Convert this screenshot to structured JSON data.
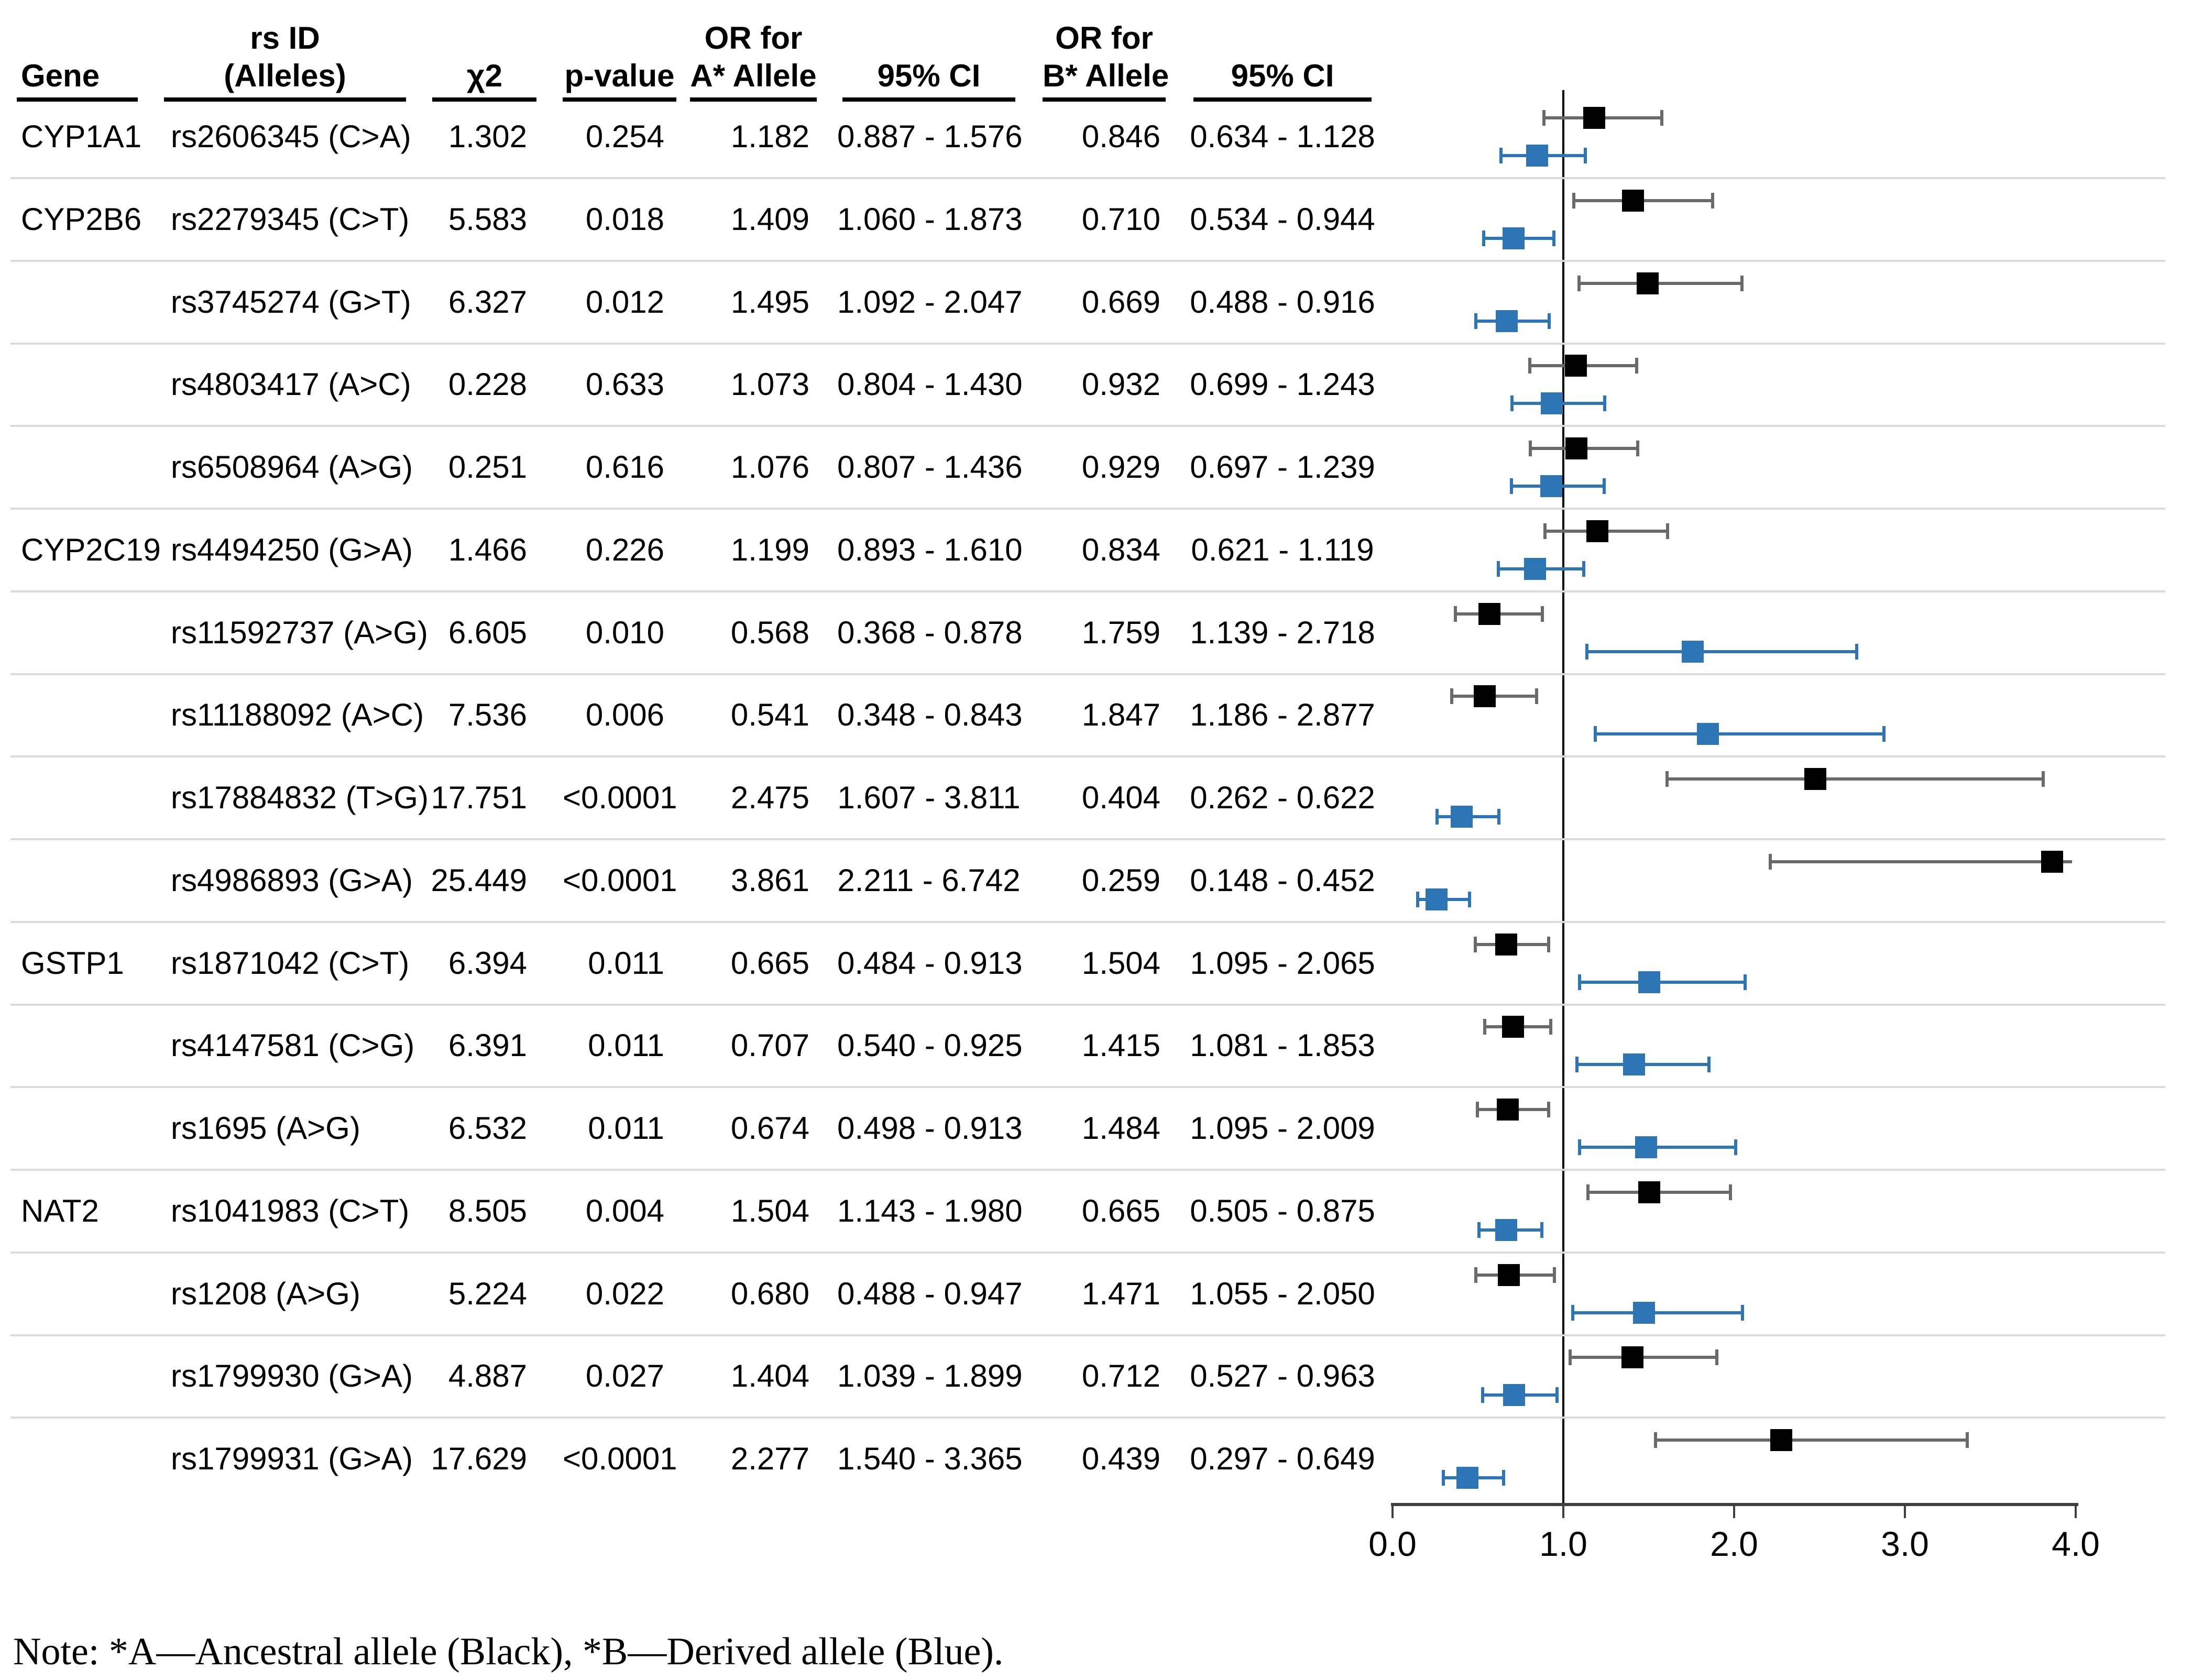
{
  "header": {
    "gene": "Gene",
    "rsid_top": "rs ID",
    "rsid_bottom": "(Alleles)",
    "chi2": "χ2",
    "pvalue": "p-value",
    "or_a_top": "OR for",
    "or_a_bottom": "A* Allele",
    "ci_a": "95% CI",
    "or_b_top": "OR for",
    "or_b_bottom": "B* Allele",
    "ci_b": "95% CI"
  },
  "rows": [
    {
      "gene": "CYP1A1",
      "rsid": "rs2606345 (C>A)",
      "chi2": "1.302",
      "p": "0.254",
      "or_a": "1.182",
      "ci_a": "0.887 - 1.576",
      "or_b": "0.846",
      "ci_b": "0.634 - 1.128"
    },
    {
      "gene": "CYP2B6",
      "rsid": "rs2279345 (C>T)",
      "chi2": "5.583",
      "p": "0.018",
      "or_a": "1.409",
      "ci_a": "1.060 - 1.873",
      "or_b": "0.710",
      "ci_b": "0.534 - 0.944"
    },
    {
      "gene": "",
      "rsid": "rs3745274 (G>T)",
      "chi2": "6.327",
      "p": "0.012",
      "or_a": "1.495",
      "ci_a": "1.092 - 2.047",
      "or_b": "0.669",
      "ci_b": "0.488 - 0.916"
    },
    {
      "gene": "",
      "rsid": "rs4803417 (A>C)",
      "chi2": "0.228",
      "p": "0.633",
      "or_a": "1.073",
      "ci_a": "0.804 - 1.430",
      "or_b": "0.932",
      "ci_b": "0.699 - 1.243"
    },
    {
      "gene": "",
      "rsid": "rs6508964 (A>G)",
      "chi2": "0.251",
      "p": "0.616",
      "or_a": "1.076",
      "ci_a": "0.807 - 1.436",
      "or_b": "0.929",
      "ci_b": "0.697 - 1.239"
    },
    {
      "gene": "CYP2C19",
      "rsid": "rs4494250 (G>A)",
      "chi2": "1.466",
      "p": "0.226",
      "or_a": "1.199",
      "ci_a": "0.893 - 1.610",
      "or_b": "0.834",
      "ci_b": "0.621 - 1.119"
    },
    {
      "gene": "",
      "rsid": "rs11592737 (A>G)",
      "chi2": "6.605",
      "p": "0.010",
      "or_a": "0.568",
      "ci_a": "0.368 - 0.878",
      "or_b": "1.759",
      "ci_b": "1.139 - 2.718"
    },
    {
      "gene": "",
      "rsid": "rs11188092 (A>C)",
      "chi2": "7.536",
      "p": "0.006",
      "or_a": "0.541",
      "ci_a": "0.348 - 0.843",
      "or_b": "1.847",
      "ci_b": "1.186 - 2.877"
    },
    {
      "gene": "",
      "rsid": "rs17884832 (T>G)",
      "chi2": "17.751",
      "p": "<0.0001",
      "or_a": "2.475",
      "ci_a": "1.607 - 3.811",
      "or_b": "0.404",
      "ci_b": "0.262 - 0.622"
    },
    {
      "gene": "",
      "rsid": "rs4986893 (G>A)",
      "chi2": "25.449",
      "p": "<0.0001",
      "or_a": "3.861",
      "ci_a": "2.211 - 6.742",
      "or_b": "0.259",
      "ci_b": "0.148 - 0.452"
    },
    {
      "gene": "GSTP1",
      "rsid": "rs1871042 (C>T)",
      "chi2": "6.394",
      "p": "0.011",
      "or_a": "0.665",
      "ci_a": "0.484 - 0.913",
      "or_b": "1.504",
      "ci_b": "1.095 - 2.065"
    },
    {
      "gene": "",
      "rsid": "rs4147581 (C>G)",
      "chi2": "6.391",
      "p": "0.011",
      "or_a": "0.707",
      "ci_a": "0.540 - 0.925",
      "or_b": "1.415",
      "ci_b": "1.081 - 1.853"
    },
    {
      "gene": "",
      "rsid": "rs1695 (A>G)",
      "chi2": "6.532",
      "p": "0.011",
      "or_a": "0.674",
      "ci_a": "0.498 - 0.913",
      "or_b": "1.484",
      "ci_b": "1.095 - 2.009"
    },
    {
      "gene": "NAT2",
      "rsid": "rs1041983 (C>T)",
      "chi2": "8.505",
      "p": "0.004",
      "or_a": "1.504",
      "ci_a": "1.143 - 1.980",
      "or_b": "0.665",
      "ci_b": "0.505 - 0.875"
    },
    {
      "gene": "",
      "rsid": "rs1208 (A>G)",
      "chi2": "5.224",
      "p": "0.022",
      "or_a": "0.680",
      "ci_a": "0.488 - 0.947",
      "or_b": "1.471",
      "ci_b": "1.055 - 2.050"
    },
    {
      "gene": "",
      "rsid": "rs1799930 (G>A)",
      "chi2": "4.887",
      "p": "0.027",
      "or_a": "1.404",
      "ci_a": "1.039 - 1.899",
      "or_b": "0.712",
      "ci_b": "0.527 - 0.963"
    },
    {
      "gene": "",
      "rsid": "rs1799931 (G>A)",
      "chi2": "17.629",
      "p": "<0.0001",
      "or_a": "2.277",
      "ci_a": "1.540 - 3.365",
      "or_b": "0.439",
      "ci_b": "0.297 - 0.649"
    }
  ],
  "axis": {
    "ticks": [
      "0.0",
      "1.0",
      "2.0",
      "3.0",
      "4.0"
    ]
  },
  "note": "Note: *A—Ancestral allele (Black), *B—Derived allele (Blue).",
  "chart_data": {
    "type": "scatter",
    "subtype": "forest-plot",
    "orientation": "horizontal",
    "categories": [
      "rs2606345 (C>A)",
      "rs2279345 (C>T)",
      "rs3745274 (G>T)",
      "rs4803417 (A>C)",
      "rs6508964 (A>G)",
      "rs4494250 (G>A)",
      "rs11592737 (A>G)",
      "rs11188092 (A>C)",
      "rs17884832 (T>G)",
      "rs4986893 (G>A)",
      "rs1871042 (C>T)",
      "rs4147581 (C>G)",
      "rs1695 (A>G)",
      "rs1041983 (C>T)",
      "rs1208 (A>G)",
      "rs1799930 (G>A)",
      "rs1799931 (G>A)"
    ],
    "gene_groups": [
      "CYP1A1",
      "CYP2B6",
      "",
      "",
      "",
      "CYP2C19",
      "",
      "",
      "",
      "",
      "GSTP1",
      "",
      "",
      "NAT2",
      "",
      "",
      ""
    ],
    "series": [
      {
        "name": "OR for A* Allele (Ancestral, Black)",
        "color": "#000000",
        "whisker_color": "#6A6A6A",
        "values": [
          1.182,
          1.409,
          1.495,
          1.073,
          1.076,
          1.199,
          0.568,
          0.541,
          2.475,
          3.861,
          0.665,
          0.707,
          0.674,
          1.504,
          0.68,
          1.404,
          2.277
        ],
        "ci_low": [
          0.887,
          1.06,
          1.092,
          0.804,
          0.807,
          0.893,
          0.368,
          0.348,
          1.607,
          2.211,
          0.484,
          0.54,
          0.498,
          1.143,
          0.488,
          1.039,
          1.54
        ],
        "ci_high": [
          1.576,
          1.873,
          2.047,
          1.43,
          1.436,
          1.61,
          0.878,
          0.843,
          3.811,
          6.742,
          0.913,
          0.925,
          0.913,
          1.98,
          0.947,
          1.899,
          3.365
        ]
      },
      {
        "name": "OR for B* Allele (Derived, Blue)",
        "color": "#2E75B6",
        "whisker_color": "#2E75B6",
        "values": [
          0.846,
          0.71,
          0.669,
          0.932,
          0.929,
          0.834,
          1.759,
          1.847,
          0.404,
          0.259,
          1.504,
          1.415,
          1.484,
          0.665,
          1.471,
          0.712,
          0.439
        ],
        "ci_low": [
          0.634,
          0.534,
          0.488,
          0.699,
          0.697,
          0.621,
          1.139,
          1.186,
          0.262,
          0.148,
          1.095,
          1.081,
          1.095,
          0.505,
          1.055,
          0.527,
          0.297
        ],
        "ci_high": [
          1.128,
          0.944,
          0.916,
          1.243,
          1.239,
          1.119,
          2.718,
          2.877,
          0.622,
          0.452,
          2.065,
          1.853,
          2.009,
          0.875,
          2.05,
          0.963,
          0.649
        ]
      }
    ],
    "xlim": [
      0.0,
      4.0
    ],
    "x_ticks": [
      "0.0",
      "1.0",
      "2.0",
      "3.0",
      "4.0"
    ],
    "reference_line": 1.0,
    "grid": "row-separators-only",
    "legend_position": "none (explained in bottom note)"
  }
}
